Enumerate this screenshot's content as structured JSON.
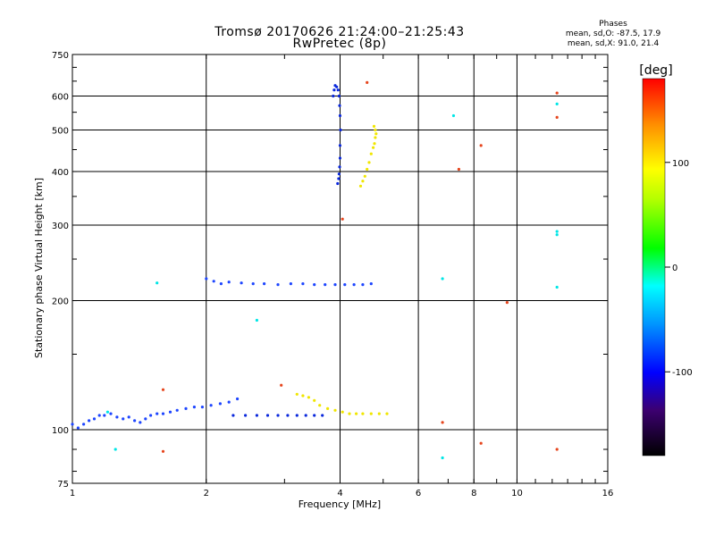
{
  "chart_data": {
    "type": "scatter",
    "title": "Tromsø 20170626 21:24:00–21:25:43",
    "subtitle": "RwPretec (8p)",
    "xlabel": "Frequency [MHz]",
    "ylabel": "Stationary phase Virtual Height [km]",
    "xscale": "log",
    "yscale": "log",
    "xlim": [
      1,
      16
    ],
    "ylim": [
      75,
      750
    ],
    "xticks": [
      1,
      2,
      4,
      6,
      8,
      10,
      16
    ],
    "xtick_labels": [
      "1",
      "2",
      "4",
      "6",
      "8",
      "10",
      "16"
    ],
    "yticks": [
      75,
      100,
      200,
      300,
      400,
      500,
      600,
      750
    ],
    "ytick_labels": [
      "75",
      "100",
      "200",
      "300",
      "400",
      "500",
      "600",
      "750"
    ],
    "grid": true,
    "legend": {
      "title": "Phases",
      "line1": "mean, sd,O: -87.5, 17.9",
      "line2": "mean, sd,X:  91.0, 21.4"
    },
    "colorbar": {
      "label": "[deg]",
      "range": [
        -180,
        180
      ],
      "ticks": [
        100,
        0,
        -100
      ],
      "tick_labels": [
        "100",
        "0",
        "-100"
      ]
    },
    "series": [
      {
        "name": "E-layer O-mode trace",
        "color": "#1e46ff",
        "x": [
          1.0,
          1.03,
          1.06,
          1.09,
          1.12,
          1.15,
          1.18,
          1.22,
          1.26,
          1.3,
          1.34,
          1.38,
          1.42,
          1.46,
          1.5,
          1.55,
          1.6,
          1.66,
          1.72,
          1.8,
          1.88,
          1.96,
          2.05,
          2.15,
          2.25,
          2.35
        ],
        "y": [
          103,
          101,
          103,
          105,
          106,
          108,
          108,
          109,
          107,
          106,
          107,
          105,
          104,
          106,
          108,
          109,
          109,
          110,
          111,
          112,
          113,
          113,
          114,
          115,
          116,
          118
        ]
      },
      {
        "name": "E-layer X-mode trace",
        "color": "#0a28dc",
        "x": [
          2.3,
          2.45,
          2.6,
          2.75,
          2.9,
          3.05,
          3.2,
          3.35,
          3.5,
          3.65
        ],
        "y": [
          108,
          108,
          108,
          108,
          108,
          108,
          108,
          108,
          108,
          108
        ]
      },
      {
        "name": "E-layer high-phase trace",
        "color": "#f0e600",
        "x": [
          3.2,
          3.3,
          3.4,
          3.5,
          3.6,
          3.75,
          3.9,
          4.05,
          4.2,
          4.35,
          4.5,
          4.7,
          4.9,
          5.1
        ],
        "y": [
          121,
          120,
          119,
          117,
          114,
          112,
          111,
          110,
          109,
          109,
          109,
          109,
          109,
          109
        ]
      },
      {
        "name": "F1 trace",
        "color": "#1e46ff",
        "x": [
          2.0,
          2.08,
          2.16,
          2.25,
          2.4,
          2.55,
          2.7,
          2.9,
          3.1,
          3.3,
          3.5,
          3.7,
          3.9,
          4.1,
          4.3,
          4.5,
          4.7
        ],
        "y": [
          225,
          222,
          219,
          221,
          220,
          219,
          219,
          218,
          219,
          219,
          218,
          218,
          218,
          218,
          218,
          218,
          219
        ]
      },
      {
        "name": "F2 O-mode cusp",
        "color": "#0a28dc",
        "x": [
          3.95,
          3.97,
          3.98,
          3.99,
          4.0,
          4.0,
          4.01,
          4.0,
          3.99,
          3.98,
          3.96,
          3.93,
          3.9,
          3.88,
          3.86
        ],
        "y": [
          375,
          385,
          395,
          410,
          430,
          460,
          500,
          540,
          570,
          600,
          620,
          630,
          635,
          620,
          600
        ]
      },
      {
        "name": "F2 X-mode trace",
        "color": "#f0e600",
        "x": [
          4.45,
          4.5,
          4.55,
          4.6,
          4.65,
          4.7,
          4.75,
          4.78,
          4.8,
          4.82,
          4.8,
          4.77
        ],
        "y": [
          370,
          380,
          390,
          405,
          420,
          440,
          455,
          465,
          480,
          490,
          500,
          510
        ]
      },
      {
        "name": "Scattered points",
        "color": "#00e6e6",
        "x": [
          7.2,
          6.8,
          12.3,
          12.3,
          12.3,
          12.3,
          1.55,
          2.6,
          1.2,
          1.25,
          6.8
        ],
        "y": [
          540,
          225,
          575,
          290,
          285,
          215,
          220,
          180,
          110,
          90,
          86
        ]
      },
      {
        "name": "Scattered points (other phases)",
        "color": "#e6461e",
        "x": [
          1.6,
          8.3,
          7.4,
          6.8,
          12.3,
          12.3,
          1.6,
          12.3,
          9.5,
          8.3,
          2.95,
          4.6,
          4.05
        ],
        "y": [
          89,
          460,
          405,
          104,
          610,
          535,
          124,
          90,
          198,
          93,
          127,
          645,
          310
        ]
      }
    ]
  }
}
